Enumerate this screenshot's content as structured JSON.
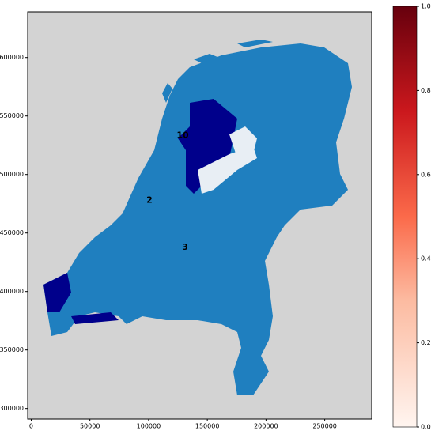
{
  "map": {
    "xlim": [
      -3000,
      290000
    ],
    "ylim": [
      291000,
      639000
    ],
    "xticks": [
      0,
      50000,
      100000,
      150000,
      200000,
      250000
    ],
    "yticks": [
      300000,
      350000,
      400000,
      450000,
      500000,
      550000,
      600000
    ],
    "annotations": [
      {
        "label": "10",
        "x": 129000,
        "y": 533100
      },
      {
        "label": "2",
        "x": 100700,
        "y": 477700
      },
      {
        "label": "3",
        "x": 131100,
        "y": 437800
      }
    ],
    "colorbar": {
      "lim": [
        0,
        1
      ],
      "ticks": [
        {
          "value": 0,
          "label": "0.0"
        },
        {
          "value": 0.2,
          "label": "0.2"
        },
        {
          "value": 0.4,
          "label": "0.4"
        },
        {
          "value": 0.6,
          "label": "0.6"
        },
        {
          "value": 0.8,
          "label": "0.8"
        },
        {
          "value": 1,
          "label": "1.0"
        }
      ]
    }
  }
}
